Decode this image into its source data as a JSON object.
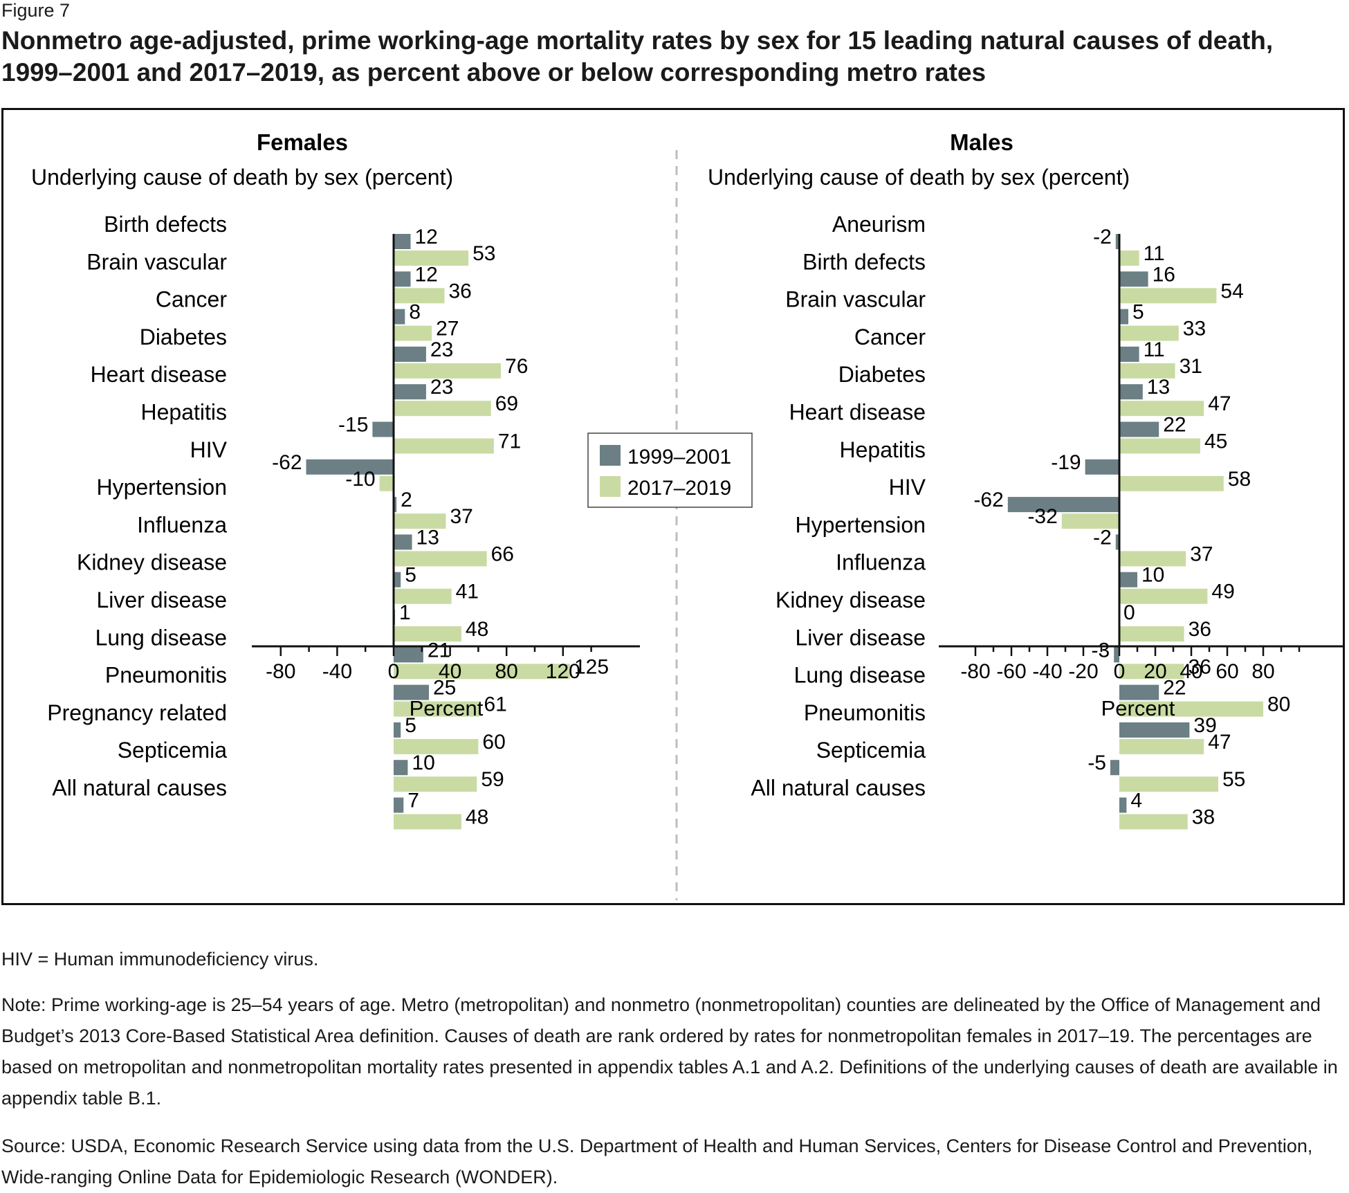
{
  "figure_label": "Figure 7",
  "title": "Nonmetro age-adjusted, prime working-age mortality rates by sex for 15 leading natural causes of death, 1999–2001 and 2017–2019, as percent above or below corresponding metro rates",
  "colors": {
    "period1": "#6b7f84",
    "period2": "#c9dba3",
    "frame": "#111111",
    "divider": "#bdbdbd"
  },
  "legend": [
    "1999–2001",
    "2017–2019"
  ],
  "notes": {
    "abbreviation": "HIV = Human immunodeficiency virus.",
    "note": "Note: Prime working-age is 25–54 years of age. Metro (metropolitan) and nonmetro (nonmetropolitan) counties are delineated by the Office of Management and Budget’s 2013 Core-Based Statistical Area definition. Causes of death are rank ordered by rates for nonmetropolitan females in 2017–19. The percentages are based on metropolitan and nonmetropolitan mortality rates presented in appendix tables A.1 and A.2. Definitions of the underlying causes of death are available in appendix table B.1.",
    "source": "Source: USDA, Economic Research Service using data from the U.S. Department of Health and Human Services, Centers for Disease Control and Prevention, Wide-ranging Online Data for Epidemiologic Research (WONDER)."
  },
  "chart_data": [
    {
      "type": "bar",
      "orientation": "horizontal",
      "panel": "Females",
      "subtitle": "Underlying cause of death by sex (percent)",
      "xlabel": "Percent",
      "xlim": [
        -80,
        140
      ],
      "xticks": [
        -80,
        -40,
        0,
        40,
        80,
        120
      ],
      "categories": [
        "Birth defects",
        "Brain vascular",
        "Cancer",
        "Diabetes",
        "Heart disease",
        "Hepatitis",
        "HIV",
        "Hypertension",
        "Influenza",
        "Kidney disease",
        "Liver disease",
        "Lung disease",
        "Pneumonitis",
        "Pregnancy related",
        "Septicemia",
        "All natural causes"
      ],
      "series": [
        {
          "name": "1999–2001",
          "values": [
            12,
            12,
            8,
            23,
            23,
            -15,
            -62,
            2,
            13,
            5,
            1,
            21,
            25,
            5,
            10,
            7
          ]
        },
        {
          "name": "2017–2019",
          "values": [
            53,
            36,
            27,
            76,
            69,
            71,
            -10,
            37,
            66,
            41,
            48,
            125,
            61,
            60,
            59,
            48
          ]
        }
      ]
    },
    {
      "type": "bar",
      "orientation": "horizontal",
      "panel": "Males",
      "subtitle": "Underlying cause of death by sex (percent)",
      "xlabel": "Percent",
      "xlim": [
        -80,
        100
      ],
      "xticks": [
        -80,
        -60,
        -40,
        -20,
        0,
        20,
        40,
        60,
        80
      ],
      "categories": [
        "Aneurism",
        "Birth defects",
        "Brain vascular",
        "Cancer",
        "Diabetes",
        "Heart disease",
        "Hepatitis",
        "HIV",
        "Hypertension",
        "Influenza",
        "Kidney disease",
        "Liver disease",
        "Lung disease",
        "Pneumonitis",
        "Septicemia",
        "All natural causes"
      ],
      "series": [
        {
          "name": "1999–2001",
          "values": [
            -2,
            16,
            5,
            11,
            13,
            22,
            -19,
            -62,
            -2,
            10,
            0,
            -3,
            22,
            39,
            -5,
            4
          ]
        },
        {
          "name": "2017–2019",
          "values": [
            11,
            54,
            33,
            31,
            47,
            45,
            58,
            -32,
            37,
            49,
            36,
            36,
            80,
            47,
            55,
            38
          ]
        }
      ]
    }
  ]
}
